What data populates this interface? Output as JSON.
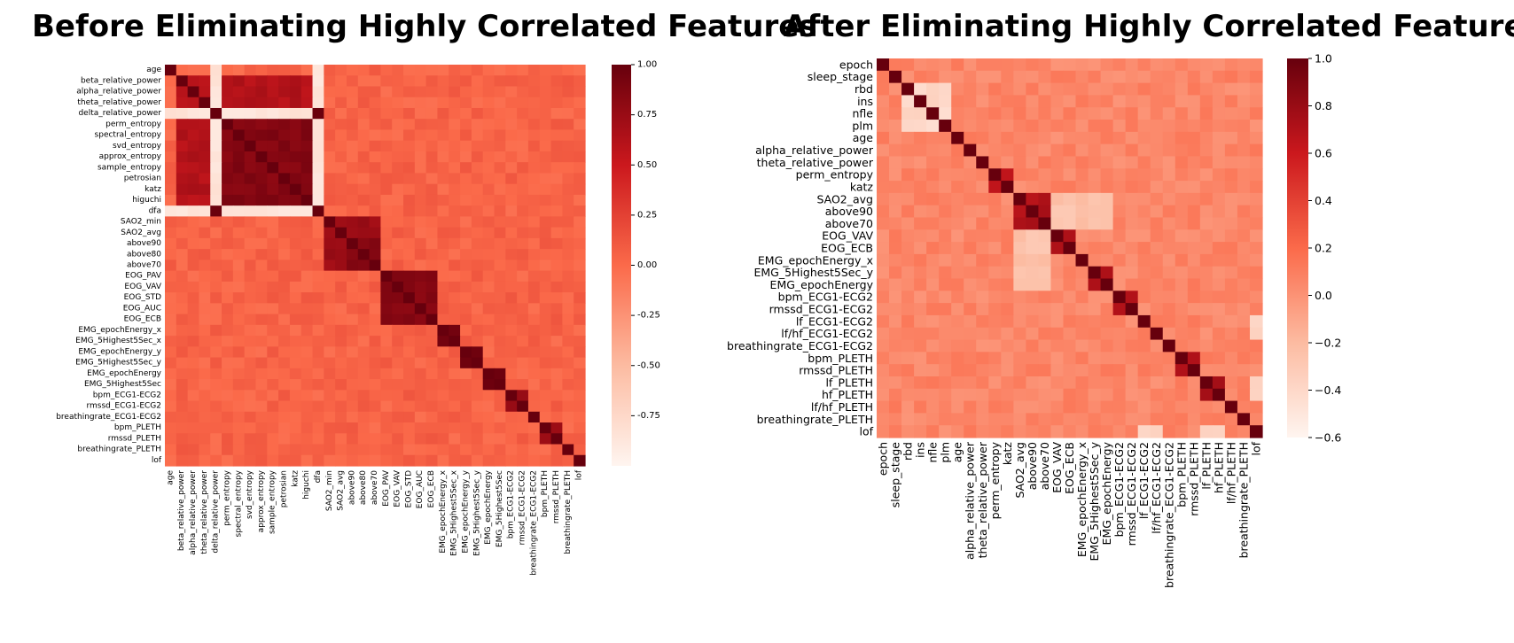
{
  "titles": {
    "left": "Before Eliminating Highly Correlated Features",
    "right": "After Eliminating Highly Correlated Features"
  },
  "colors": {
    "scale_high": "#67000d",
    "scale_mid": "#fb6a4a",
    "scale_low": "#fff5f0"
  },
  "chart_data": [
    {
      "type": "heatmap",
      "title": "Before Eliminating Highly Correlated Features",
      "labels": [
        "age",
        "beta_relative_power",
        "alpha_relative_power",
        "theta_relative_power",
        "delta_relative_power",
        "perm_entropy",
        "spectral_entropy",
        "svd_entropy",
        "approx_entropy",
        "sample_entropy",
        "petrosian",
        "katz",
        "higuchi",
        "dfa",
        "SAO2_min",
        "SAO2_avg",
        "above90",
        "above80",
        "above70",
        "EOG_PAV",
        "EOG_VAV",
        "EOG_STD",
        "EOG_AUC",
        "EOG_ECB",
        "EMG_epochEnergy_x",
        "EMG_5Highest5Sec_x",
        "EMG_epochEnergy_y",
        "EMG_5Highest5Sec_y",
        "EMG_epochEnergy",
        "EMG_5Highest5Sec",
        "bpm_ECG1-ECG2",
        "rmssd_ECG1-ECG2",
        "breathingrate_ECG1-ECG2",
        "bpm_PLETH",
        "rmssd_PLETH",
        "breathingrate_PLETH",
        "lof"
      ],
      "value_range": [
        -1.0,
        1.0
      ],
      "colorbar_ticks": [
        "1.00",
        "0.75",
        "0.50",
        "0.25",
        "0.00",
        "-0.25",
        "-0.50",
        "-0.75"
      ],
      "colorbar_tick_values": [
        1.0,
        0.75,
        0.5,
        0.25,
        0.0,
        -0.25,
        -0.5,
        -0.75
      ],
      "groups": [
        {
          "members": [
            1,
            2,
            3,
            5,
            6,
            7,
            8,
            9,
            10,
            11,
            12
          ],
          "r": 0.62
        },
        {
          "members": [
            5,
            6,
            7,
            8,
            9,
            10,
            11,
            12
          ],
          "r": 0.85
        },
        {
          "members": [
            14,
            15,
            16,
            17,
            18
          ],
          "r": 0.72
        },
        {
          "members": [
            16,
            17,
            18
          ],
          "r": 0.85
        },
        {
          "members": [
            19,
            20,
            21,
            22,
            23
          ],
          "r": 0.85
        },
        {
          "members": [
            24,
            25
          ],
          "r": 0.92
        },
        {
          "members": [
            26,
            27
          ],
          "r": 0.92
        },
        {
          "members": [
            28,
            29
          ],
          "r": 0.93
        },
        {
          "members": [
            30,
            31
          ],
          "r": 0.7
        },
        {
          "members": [
            33,
            34
          ],
          "r": 0.7
        }
      ],
      "negatives": [
        {
          "rows": [
            4
          ],
          "cols": [
            0,
            1,
            2,
            3,
            5,
            6,
            7,
            8,
            9,
            10,
            11,
            12
          ],
          "r": -0.85
        },
        {
          "rows": [
            13
          ],
          "cols": [
            0,
            1,
            2,
            3,
            5,
            6,
            7,
            8,
            9,
            10,
            11,
            12
          ],
          "r": -0.85
        },
        {
          "rows": [
            4
          ],
          "cols": [
            13
          ],
          "r": 0.95
        }
      ]
    },
    {
      "type": "heatmap",
      "title": "After Eliminating Highly Correlated Features",
      "labels": [
        "epoch",
        "sleep_stage",
        "rbd",
        "ins",
        "nfle",
        "plm",
        "age",
        "alpha_relative_power",
        "theta_relative_power",
        "perm_entropy",
        "katz",
        "SAO2_avg",
        "above90",
        "above70",
        "EOG_VAV",
        "EOG_ECB",
        "EMG_epochEnergy_x",
        "EMG_5Highest5Sec_y",
        "EMG_epochEnergy",
        "bpm_ECG1-ECG2",
        "rmssd_ECG1-ECG2",
        "lf_ECG1-ECG2",
        "lf/hf_ECG1-ECG2",
        "breathingrate_ECG1-ECG2",
        "bpm_PLETH",
        "rmssd_PLETH",
        "lf_PLETH",
        "hf_PLETH",
        "lf/hf_PLETH",
        "breathingrate_PLETH",
        "lof"
      ],
      "value_range": [
        -0.6,
        1.0
      ],
      "colorbar_ticks": [
        "1.0",
        "0.8",
        "0.6",
        "0.4",
        "0.2",
        "0.0",
        "−0.2",
        "−0.4",
        "−0.6"
      ],
      "colorbar_tick_values": [
        1.0,
        0.8,
        0.6,
        0.4,
        0.2,
        0.0,
        -0.2,
        -0.4,
        -0.6
      ],
      "groups": [
        {
          "members": [
            9,
            10
          ],
          "r": 0.6
        },
        {
          "members": [
            11,
            12,
            13
          ],
          "r": 0.7
        },
        {
          "members": [
            14,
            15
          ],
          "r": 0.7
        },
        {
          "members": [
            17,
            18
          ],
          "r": 0.7
        },
        {
          "members": [
            19,
            20
          ],
          "r": 0.75
        },
        {
          "members": [
            24,
            25
          ],
          "r": 0.75
        },
        {
          "members": [
            26,
            27
          ],
          "r": 0.75
        }
      ],
      "negatives": [
        {
          "rows": [
            2,
            3,
            4,
            5
          ],
          "cols": [
            2,
            3,
            4,
            5
          ],
          "r": -0.4
        },
        {
          "rows": [
            30
          ],
          "cols": [
            21,
            22,
            26,
            27
          ],
          "r": -0.4
        },
        {
          "rows": [
            14,
            15,
            16,
            17,
            18
          ],
          "cols": [
            11,
            12,
            13
          ],
          "r": -0.25
        }
      ]
    }
  ]
}
